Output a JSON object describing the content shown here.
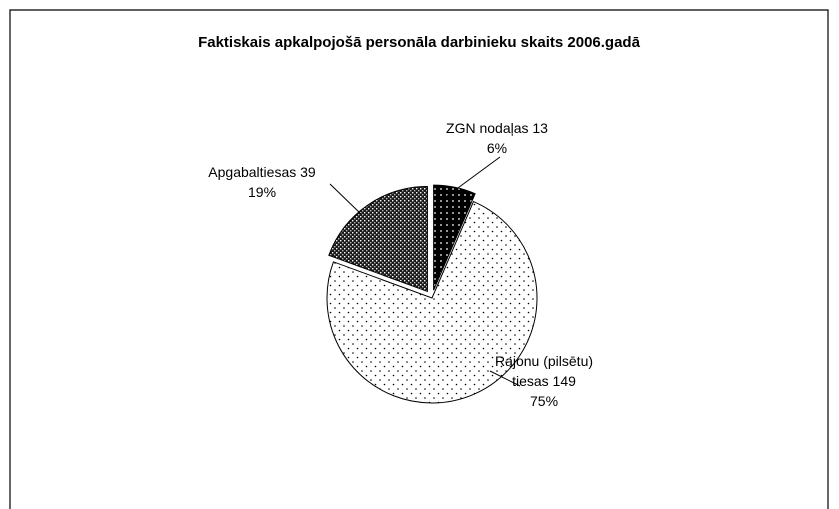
{
  "chart_data": {
    "type": "pie",
    "title": "Faktiskais apkalpojošā personāla darbinieku skaits 2006.gadā",
    "categories": [
      "ZGN nodaļas",
      "Rajonu (pilsētu) tiesas",
      "Apgabaltiesas"
    ],
    "values": [
      13,
      149,
      39
    ],
    "percents": [
      6,
      75,
      19
    ]
  }
}
